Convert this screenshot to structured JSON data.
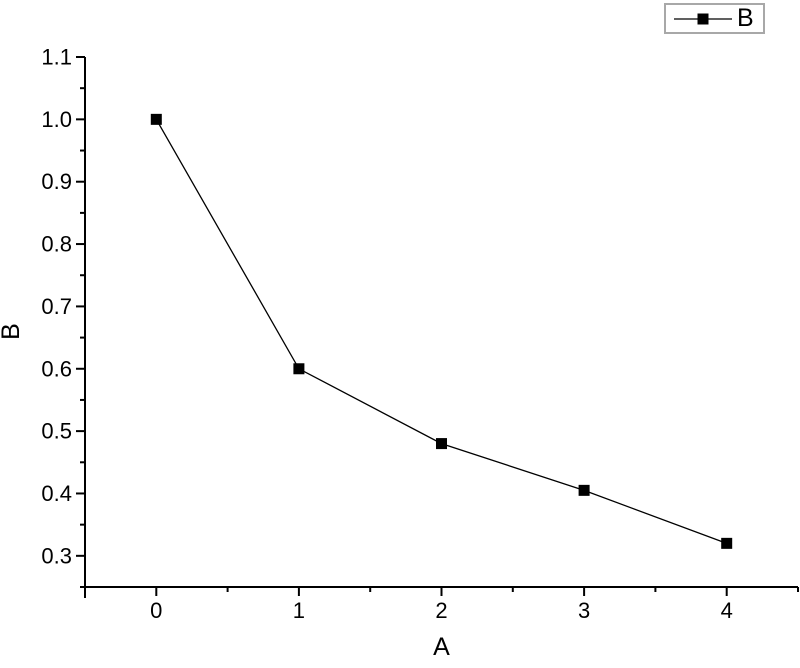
{
  "chart_data": {
    "type": "line",
    "title": "",
    "xlabel": "A",
    "ylabel": "B",
    "x": [
      0,
      1,
      2,
      3,
      4
    ],
    "series": [
      {
        "name": "B",
        "values": [
          1.0,
          0.6,
          0.48,
          0.405,
          0.32
        ],
        "color": "#000000",
        "marker": "filled-square"
      }
    ],
    "xlim": [
      -0.5,
      4.5
    ],
    "ylim": [
      0.25,
      1.1
    ],
    "x_major_ticks": [
      0,
      1,
      2,
      3,
      4
    ],
    "x_tick_labels": [
      "0",
      "1",
      "2",
      "3",
      "4"
    ],
    "x_minor_step": 0.5,
    "y_major_ticks": [
      0.3,
      0.4,
      0.5,
      0.6,
      0.7,
      0.8,
      0.9,
      1.0,
      1.1
    ],
    "y_tick_labels": [
      "0.3",
      "0.4",
      "0.5",
      "0.6",
      "0.7",
      "0.8",
      "0.9",
      "1.0",
      "1.1"
    ],
    "y_minor_step": 0.05,
    "grid": false,
    "legend": {
      "position": "top-right",
      "entries": [
        {
          "label": "B",
          "marker": "filled-square",
          "color": "#000000"
        }
      ]
    },
    "colors": {
      "background": "#ffffff",
      "axis": "#000000",
      "text": "#000000",
      "legend_border": "#a8a8a8"
    }
  }
}
